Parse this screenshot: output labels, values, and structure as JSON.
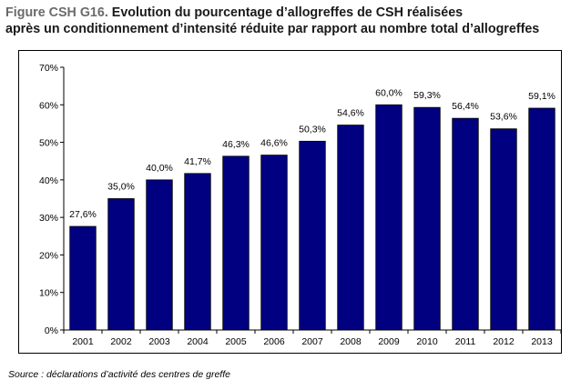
{
  "title": {
    "prefix": "Figure CSH G16.",
    "line1": " Evolution du pourcentage d’allogreffes de CSH réalisées",
    "line2": "après un conditionnement d’intensité réduite par rapport au nombre total d’allogreffes"
  },
  "source": "Source : déclarations d’activité des centres de greffe",
  "colors": {
    "bar": "#000080",
    "bar_stroke": "#000000",
    "axis": "#000000"
  },
  "chart_data": {
    "type": "bar",
    "categories": [
      "2001",
      "2002",
      "2003",
      "2004",
      "2005",
      "2006",
      "2007",
      "2008",
      "2009",
      "2010",
      "2011",
      "2012",
      "2013"
    ],
    "values": [
      27.6,
      35.0,
      40.0,
      41.7,
      46.3,
      46.6,
      50.3,
      54.6,
      60.0,
      59.3,
      56.4,
      53.6,
      59.1
    ],
    "data_labels": [
      "27,6%",
      "35,0%",
      "40,0%",
      "41,7%",
      "46,3%",
      "46,6%",
      "50,3%",
      "54,6%",
      "60,0%",
      "59,3%",
      "56,4%",
      "53,6%",
      "59,1%"
    ],
    "y_ticks": [
      0,
      10,
      20,
      30,
      40,
      50,
      60,
      70
    ],
    "y_tick_labels": [
      "0%",
      "10%",
      "20%",
      "30%",
      "40%",
      "50%",
      "60%",
      "70%"
    ],
    "ylim": [
      0,
      70
    ],
    "grid": false,
    "legend": "none"
  }
}
